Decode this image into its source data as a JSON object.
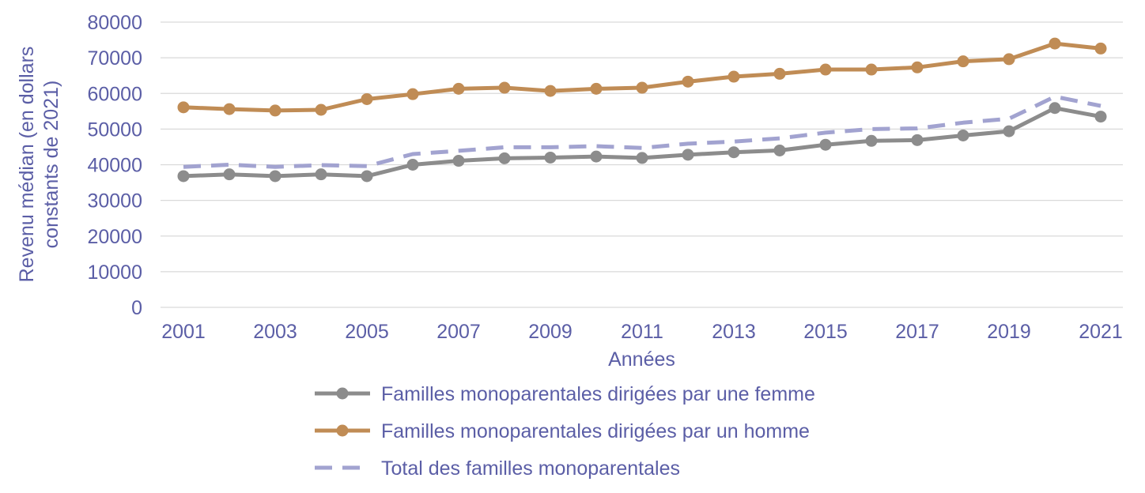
{
  "chart_data": {
    "type": "line",
    "title": "",
    "xlabel": "Années",
    "ylabel_lines": [
      "Revenu médian (en dollars",
      "constants de 2021)"
    ],
    "x": [
      2001,
      2002,
      2003,
      2004,
      2005,
      2006,
      2007,
      2008,
      2009,
      2010,
      2011,
      2012,
      2013,
      2014,
      2015,
      2016,
      2017,
      2018,
      2019,
      2020,
      2021
    ],
    "x_tick_labels": [
      "2001",
      "2003",
      "2005",
      "2007",
      "2009",
      "2011",
      "2013",
      "2015",
      "2017",
      "2019",
      "2021"
    ],
    "y_tick_labels": [
      "0",
      "10000",
      "20000",
      "30000",
      "40000",
      "50000",
      "60000",
      "70000",
      "80000"
    ],
    "ylim": [
      0,
      80000
    ],
    "grid": "horizontal",
    "legend_position": "bottom",
    "text_color": "#5B5EA6",
    "series": [
      {
        "name": "Familles monoparentales dirigées par une femme",
        "color": "#8C8C8C",
        "style": "solid-markers",
        "values": [
          36800,
          37300,
          36800,
          37300,
          36800,
          40000,
          41100,
          41800,
          42000,
          42300,
          41900,
          42800,
          43500,
          44000,
          45600,
          46700,
          46900,
          48200,
          49400,
          55900,
          53500
        ]
      },
      {
        "name": "Familles monoparentales dirigées par un homme",
        "color": "#C08C55",
        "style": "solid-markers",
        "values": [
          56100,
          55600,
          55200,
          55400,
          58400,
          59800,
          61300,
          61600,
          60700,
          61300,
          61600,
          63300,
          64700,
          65500,
          66700,
          66700,
          67300,
          69000,
          69600,
          74000,
          72600
        ]
      },
      {
        "name": "Total des familles monoparentales",
        "color": "#A2A3D0",
        "style": "dashed",
        "values": [
          39400,
          40000,
          39400,
          39900,
          39600,
          43000,
          43900,
          44900,
          44900,
          45200,
          44700,
          45900,
          46500,
          47400,
          49000,
          50000,
          50200,
          51800,
          52900,
          59100,
          56500
        ]
      }
    ]
  }
}
